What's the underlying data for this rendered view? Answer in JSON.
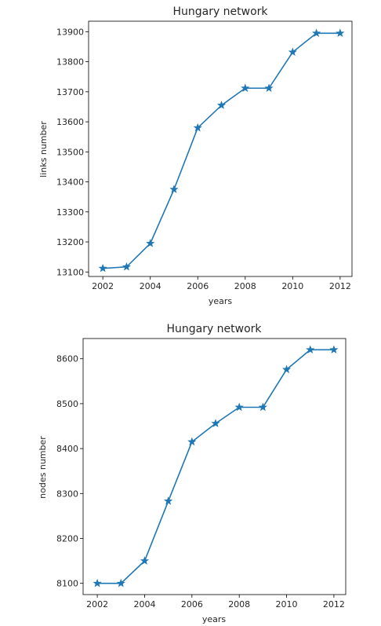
{
  "chart_data": [
    {
      "type": "line",
      "title": "Hungary network",
      "xlabel": "years",
      "ylabel": "links number",
      "x": [
        2002,
        2003,
        2004,
        2005,
        2006,
        2007,
        2008,
        2009,
        2010,
        2011,
        2012
      ],
      "series": [
        {
          "values": [
            13112,
            13117,
            13195,
            13375,
            13580,
            13655,
            13712,
            13712,
            13832,
            13895,
            13895
          ]
        }
      ],
      "xlim": [
        2001.4,
        2012.5
      ],
      "ylim": [
        13085,
        13935
      ],
      "xticks": [
        "2002",
        "2004",
        "2006",
        "2008",
        "2010",
        "2012"
      ],
      "yticks": [
        "13100",
        "13200",
        "13300",
        "13400",
        "13500",
        "13600",
        "13700",
        "13800",
        "13900"
      ],
      "marker": "star",
      "color": "#1f77b4",
      "grid": false
    },
    {
      "type": "line",
      "title": "Hungary network",
      "xlabel": "years",
      "ylabel": "nodes number",
      "x": [
        2002,
        2003,
        2004,
        2005,
        2006,
        2007,
        2008,
        2009,
        2010,
        2011,
        2012
      ],
      "series": [
        {
          "values": [
            8100,
            8100,
            8150,
            8283,
            8415,
            8456,
            8492,
            8492,
            8576,
            8620,
            8620
          ]
        }
      ],
      "xlim": [
        2001.4,
        2012.5
      ],
      "ylim": [
        8075,
        8645
      ],
      "xticks": [
        "2002",
        "2004",
        "2006",
        "2008",
        "2010",
        "2012"
      ],
      "yticks": [
        "8100",
        "8200",
        "8300",
        "8400",
        "8500",
        "8600"
      ],
      "marker": "star",
      "color": "#1f77b4",
      "grid": false
    }
  ]
}
